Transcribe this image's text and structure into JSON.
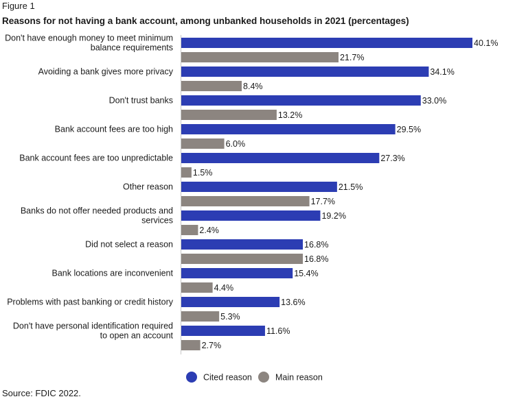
{
  "figure_label": "Figure 1",
  "title": "Reasons for not having a bank account, among unbanked households in 2021 (percentages)",
  "source": "Source: FDIC 2022.",
  "colors": {
    "cited": "#2c3db3",
    "main": "#8c8580"
  },
  "chart_data": {
    "type": "bar",
    "orientation": "horizontal",
    "title": "Reasons for not having a bank account, among unbanked households in 2021 (percentages)",
    "categories": [
      [
        "Don't have enough money to meet minimum",
        "balance requirements"
      ],
      [
        "Avoiding a bank gives more privacy"
      ],
      [
        "Don't trust banks"
      ],
      [
        "Bank account fees are too high"
      ],
      [
        "Bank account fees are too unpredictable"
      ],
      [
        "Other reason"
      ],
      [
        "Banks do not offer needed products and",
        "services"
      ],
      [
        "Did not select a reason"
      ],
      [
        "Bank locations are inconvenient"
      ],
      [
        "Problems with past banking or credit history"
      ],
      [
        "Don't have personal identification required",
        "to open an account"
      ]
    ],
    "series": [
      {
        "name": "Cited reason",
        "values": [
          40.1,
          34.1,
          33.0,
          29.5,
          27.3,
          21.5,
          19.2,
          16.8,
          15.4,
          13.6,
          11.6
        ]
      },
      {
        "name": "Main reason",
        "values": [
          21.7,
          8.4,
          13.2,
          6.0,
          1.5,
          17.7,
          2.4,
          16.8,
          4.4,
          5.3,
          2.7
        ]
      }
    ],
    "value_suffix": "%",
    "xlim": [
      0,
      40.1
    ],
    "grid": false,
    "legend_position": "bottom"
  }
}
